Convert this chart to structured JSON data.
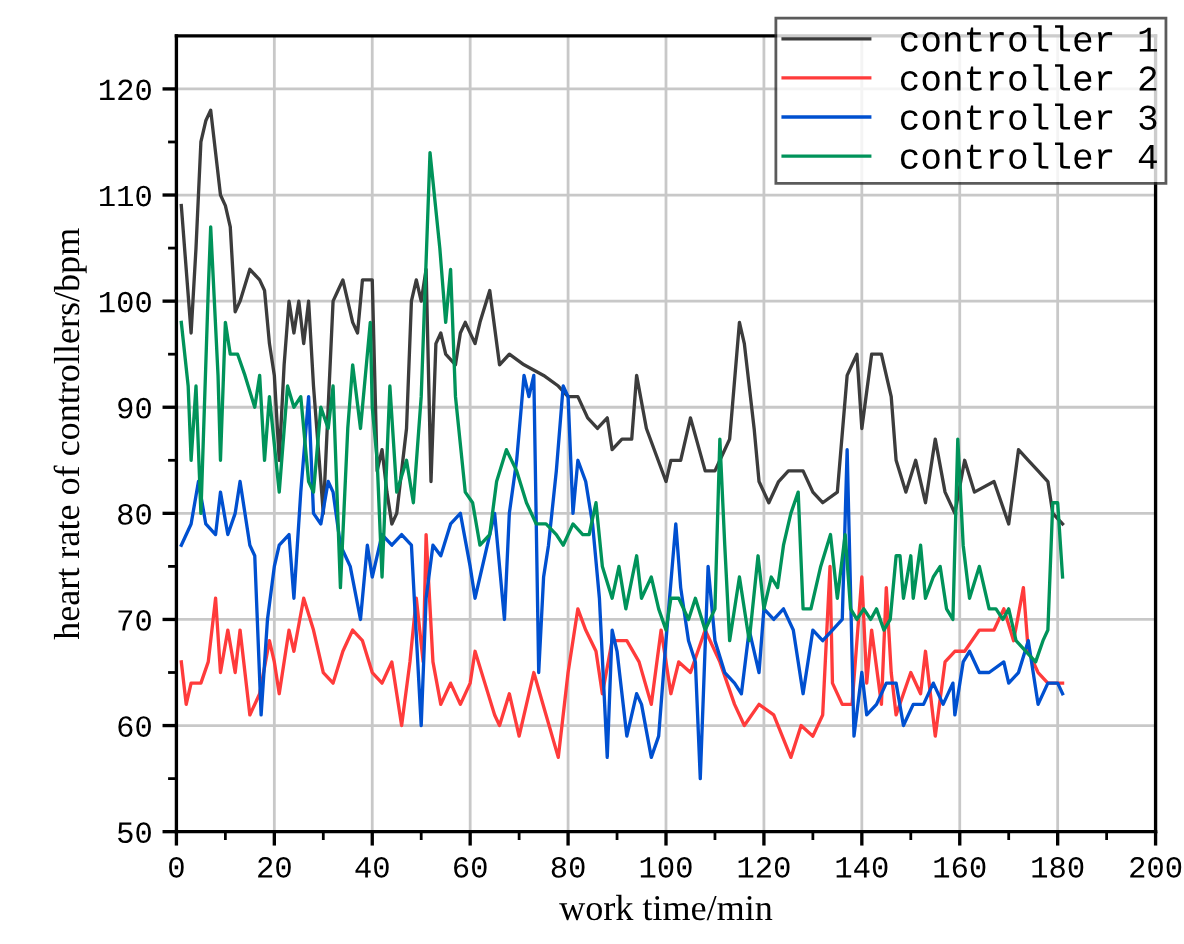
{
  "chart_data": {
    "type": "line",
    "xlabel": "work time/min",
    "ylabel": "heart rate of controllers/bpm",
    "xlim": [
      0,
      200
    ],
    "xticks": [
      0,
      {
        "value": 10,
        "label": null
      },
      20,
      {
        "value": 30,
        "label": null
      },
      40,
      {
        "value": 50,
        "label": null
      },
      60,
      {
        "value": 70,
        "label": null
      },
      80,
      {
        "value": 90,
        "label": null
      },
      100,
      {
        "value": 110,
        "label": null
      },
      120,
      {
        "value": 130,
        "label": null
      },
      140,
      {
        "value": 150,
        "label": null
      },
      160,
      {
        "value": 170,
        "label": null
      },
      180,
      {
        "value": 190,
        "label": null
      },
      200
    ],
    "ylim": [
      50,
      125
    ],
    "yticks": [
      50,
      {
        "value": 55,
        "label": null
      },
      60,
      {
        "value": 65,
        "label": null
      },
      70,
      {
        "value": 75,
        "label": null
      },
      80,
      {
        "value": 85,
        "label": null
      },
      90,
      {
        "value": 95,
        "label": null
      },
      100,
      {
        "value": 105,
        "label": null
      },
      110,
      {
        "value": 115,
        "label": null
      },
      120
    ],
    "grid": true,
    "legend": "top right",
    "marker": "none",
    "line_style": "solid",
    "series": [
      {
        "name": "controller 1",
        "color": "#3c3c3c",
        "x": [
          1,
          3,
          4,
          5,
          6,
          7,
          8,
          9,
          10,
          11,
          12,
          13,
          15,
          17,
          18,
          19,
          20,
          21,
          22,
          23,
          24,
          25,
          26,
          27,
          28,
          29,
          30,
          31,
          32,
          33,
          34,
          35,
          36,
          37,
          38,
          39,
          40,
          41,
          42,
          43,
          44,
          45,
          47,
          48,
          49,
          50,
          51,
          52,
          53,
          54,
          55,
          57,
          58,
          59,
          61,
          62,
          64,
          66,
          68,
          71,
          75,
          78,
          80,
          82,
          84,
          86,
          88,
          89,
          91,
          93,
          94,
          96,
          100,
          101,
          103,
          105,
          108,
          110,
          112,
          113,
          115,
          116,
          118,
          119,
          121,
          123,
          125,
          128,
          130,
          132,
          135,
          137,
          138,
          139,
          140,
          142,
          144,
          146,
          147,
          149,
          151,
          153,
          155,
          157,
          159,
          161,
          163,
          167,
          170,
          172,
          174,
          176,
          178,
          179,
          181
        ],
        "values": [
          109,
          97,
          105,
          115,
          117,
          118,
          114,
          110,
          109,
          107,
          99,
          100,
          103,
          102,
          101,
          96,
          93,
          85,
          94,
          100,
          97,
          100,
          96,
          100,
          92,
          86,
          80,
          90,
          100,
          101,
          102,
          100,
          98,
          97,
          102,
          102,
          102,
          84,
          86,
          82,
          79,
          80,
          88,
          100,
          102,
          100,
          103,
          83,
          96,
          97,
          95,
          94,
          97,
          98,
          96,
          98,
          101,
          94,
          95,
          94,
          93,
          92,
          91,
          91,
          89,
          88,
          89,
          86,
          87,
          87,
          93,
          88,
          83,
          85,
          85,
          89,
          84,
          84,
          86,
          87,
          98,
          96,
          88,
          83,
          81,
          83,
          84,
          84,
          82,
          81,
          82,
          93,
          94,
          95,
          88,
          95,
          95,
          91,
          85,
          82,
          85,
          81,
          87,
          82,
          80,
          85,
          82,
          83,
          79,
          86,
          85,
          84,
          83,
          80,
          79
        ]
      },
      {
        "name": "controller 2",
        "color": "#ff3b3b",
        "x": [
          1,
          2,
          3,
          5,
          6.5,
          8,
          9,
          10.5,
          12,
          13,
          15,
          17,
          19,
          20,
          21,
          23,
          24,
          26,
          28,
          30,
          32,
          34,
          36,
          38,
          40,
          42,
          44,
          46,
          47.7,
          49,
          50.4,
          51,
          52.4,
          54,
          56,
          58,
          60,
          61,
          63,
          65,
          66,
          68,
          70,
          73,
          75.5,
          78,
          80,
          82,
          83.6,
          85.7,
          87,
          89,
          92,
          94.5,
          97,
          99,
          101,
          102.6,
          105,
          108,
          111,
          114,
          116,
          119,
          122,
          125.5,
          127.6,
          130,
          132,
          133.5,
          134,
          136,
          138,
          140,
          141,
          142,
          144,
          145,
          146,
          147,
          150,
          152,
          153,
          155,
          157,
          159,
          161,
          164,
          167,
          169,
          171,
          173,
          174,
          176,
          178,
          181
        ],
        "values": [
          66,
          62,
          64,
          64,
          66,
          72,
          65,
          69,
          65,
          69,
          61,
          63,
          68,
          66,
          63,
          69,
          67,
          72,
          69,
          65,
          64,
          67,
          69,
          68,
          65,
          64,
          66,
          60,
          66,
          72,
          66,
          78,
          66,
          62,
          64,
          62,
          64,
          67,
          64,
          61,
          60,
          63,
          59,
          65,
          61,
          57,
          65,
          71,
          69,
          67,
          63,
          68,
          68,
          66,
          62,
          69,
          63,
          66,
          65,
          69,
          66,
          62,
          60,
          62,
          61,
          57,
          60,
          59,
          61,
          75,
          64,
          62,
          62,
          74,
          64,
          69,
          62,
          73,
          65,
          61,
          65,
          63,
          67,
          59,
          66,
          67,
          67,
          69,
          69,
          71,
          68,
          73,
          67,
          65,
          64,
          64
        ]
      },
      {
        "name": "controller 3",
        "color": "#0050d0",
        "x": [
          1,
          3,
          4.5,
          6,
          8,
          9,
          10.5,
          12,
          13,
          15,
          16,
          17.3,
          18.6,
          20,
          21,
          23,
          24,
          25.4,
          27,
          28,
          29.5,
          31,
          32,
          33.5,
          35.5,
          37.6,
          39,
          40,
          42,
          44,
          46,
          48,
          50,
          51,
          52.4,
          54,
          56,
          58,
          60,
          61,
          63,
          65,
          67,
          68,
          69.5,
          71,
          72,
          73,
          74,
          75,
          76,
          77.6,
          79,
          80,
          81,
          82,
          83.6,
          85,
          86.4,
          88,
          89,
          90,
          92,
          94,
          95,
          97,
          98.5,
          100,
          102,
          103,
          104.6,
          106,
          107,
          108.6,
          110,
          112,
          114,
          115.4,
          117,
          119,
          120,
          122,
          124,
          126,
          128,
          130,
          132,
          134,
          136,
          137,
          138.4,
          140,
          141,
          143,
          145,
          147,
          148.5,
          150.5,
          152.6,
          154.6,
          156.6,
          158.6,
          159,
          160.7,
          162,
          164,
          166,
          169,
          170,
          172,
          174,
          175,
          176,
          178,
          180,
          181
        ],
        "values": [
          77,
          79,
          83,
          79,
          78,
          82,
          78,
          80,
          83,
          77,
          76,
          61,
          70,
          75,
          77,
          78,
          72,
          82,
          91,
          80,
          79,
          83,
          82,
          77,
          75,
          70,
          77,
          74,
          78,
          77,
          78,
          77,
          60,
          72,
          77,
          76,
          79,
          80,
          75,
          72,
          76,
          80,
          70,
          80,
          85,
          93,
          91,
          93,
          65,
          74,
          77,
          84,
          92,
          91,
          80,
          85,
          83,
          79,
          72,
          57,
          69,
          67,
          59,
          63,
          62,
          57,
          59,
          68,
          79,
          73,
          68,
          66,
          55,
          75,
          68,
          65,
          64,
          63,
          69,
          65,
          71,
          70,
          71,
          69,
          63,
          69,
          68,
          69,
          70,
          86,
          59,
          65,
          61,
          62,
          64,
          64,
          60,
          62,
          62,
          64,
          62,
          64,
          61,
          66,
          67,
          65,
          65,
          66,
          64,
          65,
          68,
          65,
          62,
          64,
          64,
          63
        ]
      },
      {
        "name": "controller 4",
        "color": "#00935a",
        "x": [
          1,
          2.4,
          3,
          4,
          5,
          6.5,
          7,
          8.5,
          9,
          10,
          11,
          12.5,
          14,
          16,
          17,
          18,
          19,
          21,
          22.7,
          24,
          25.4,
          27,
          28,
          29.5,
          31,
          32,
          33.5,
          35,
          36,
          37.6,
          39.6,
          40,
          41,
          42,
          43.6,
          45,
          47,
          48.4,
          50,
          51.8,
          53.8,
          55,
          56,
          57,
          59,
          60.5,
          62,
          64,
          65.4,
          67.4,
          69.5,
          71.5,
          73.5,
          75.5,
          77.6,
          79,
          81,
          83,
          84.3,
          85.7,
          87,
          89,
          90.4,
          91.8,
          94,
          95,
          97,
          98.5,
          100,
          101,
          102.6,
          104.6,
          106,
          108,
          110,
          111,
          112,
          113,
          115,
          117,
          118.8,
          120,
          121.5,
          122.8,
          124,
          125.5,
          127,
          128,
          129.6,
          131.6,
          133.6,
          135,
          136.6,
          137.7,
          139,
          140.4,
          141.8,
          143,
          144.5,
          145.8,
          147,
          147.8,
          148.5,
          150,
          150.5,
          152,
          153,
          154.6,
          156,
          157.3,
          158.6,
          159.6,
          160.7,
          162,
          164,
          166,
          167.4,
          168.8,
          170,
          171.5,
          173.5,
          175.5,
          177,
          178,
          179,
          180,
          181
        ],
        "values": [
          98,
          92,
          85,
          92,
          80,
          101,
          107,
          93,
          85,
          98,
          95,
          95,
          93,
          90,
          93,
          85,
          91,
          82,
          92,
          90,
          91,
          83,
          82,
          90,
          88,
          92,
          73,
          88,
          94,
          88,
          98,
          90,
          85,
          74,
          92,
          82,
          85,
          81,
          91,
          114,
          105,
          98,
          103,
          91,
          82,
          81,
          77,
          78,
          83,
          86,
          84,
          81,
          79,
          79,
          78,
          77,
          79,
          78,
          78,
          81,
          75,
          72,
          75,
          71,
          76,
          72,
          74,
          71,
          69,
          72,
          72,
          70,
          72,
          69,
          71,
          87,
          77,
          68,
          74,
          68,
          76,
          71,
          74,
          73,
          77,
          80,
          82,
          71,
          71,
          75,
          78,
          72,
          78,
          71,
          70,
          71,
          70,
          71,
          69,
          70,
          76,
          76,
          72,
          76,
          72,
          77,
          72,
          74,
          75,
          71,
          70,
          87,
          77,
          72,
          75,
          71,
          71,
          70,
          71,
          68,
          67,
          66,
          68,
          69,
          81,
          81,
          74
        ]
      }
    ]
  }
}
